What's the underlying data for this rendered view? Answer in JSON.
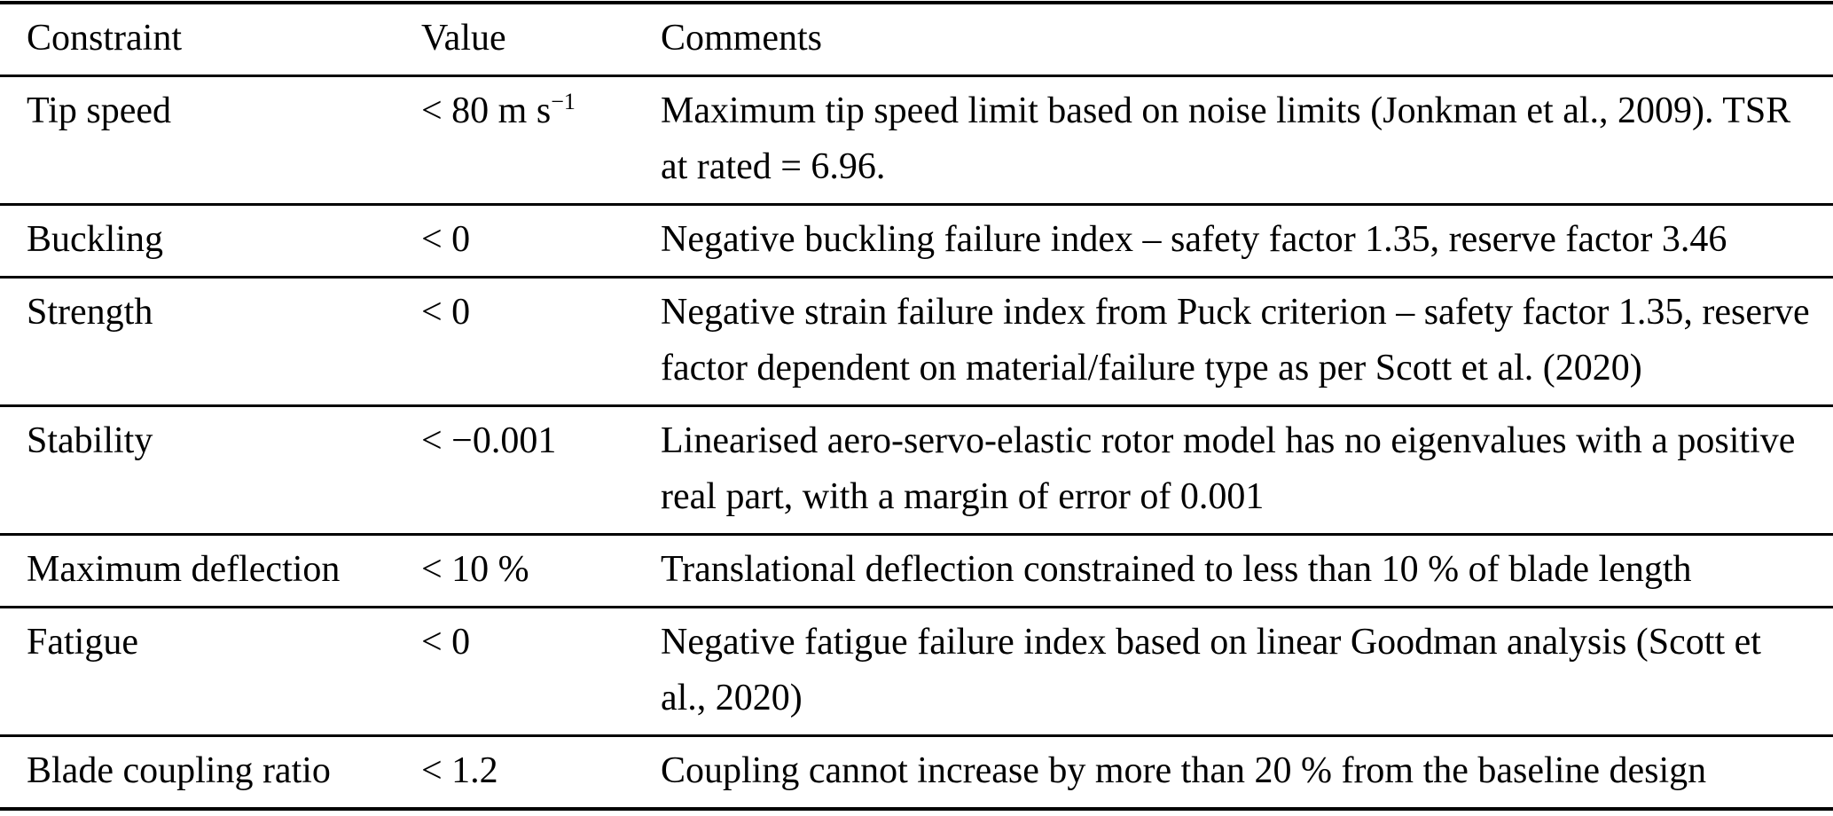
{
  "colors": {
    "background": "#ffffff",
    "text": "#000000",
    "rule": "#000000"
  },
  "table": {
    "columns": [
      "Constraint",
      "Value",
      "Comments"
    ],
    "rows": [
      {
        "constraint": "Tip speed",
        "value": "< 80 m s",
        "value_sup": "−1",
        "comment": "Maximum tip speed limit based on noise limits (Jonkman et al., 2009). TSR at rated = 6.96."
      },
      {
        "constraint": "Buckling",
        "value": "< 0",
        "value_sup": "",
        "comment": "Negative buckling failure index – safety factor 1.35, reserve factor 3.46"
      },
      {
        "constraint": "Strength",
        "value": "< 0",
        "value_sup": "",
        "comment": "Negative strain failure index from Puck criterion – safety factor 1.35, reserve factor dependent on material/failure type as per Scott et al. (2020)"
      },
      {
        "constraint": "Stability",
        "value": "< −0.001",
        "value_sup": "",
        "comment": "Linearised aero-servo-elastic rotor model has no eigenvalues with a positive real part, with a margin of error of 0.001"
      },
      {
        "constraint": "Maximum deflection",
        "value": "< 10 %",
        "value_sup": "",
        "comment": "Translational deflection constrained to less than 10 % of blade length"
      },
      {
        "constraint": "Fatigue",
        "value": "< 0",
        "value_sup": "",
        "comment": "Negative fatigue failure index based on linear Goodman analysis (Scott et al., 2020)"
      },
      {
        "constraint": "Blade coupling ratio",
        "value": "< 1.2",
        "value_sup": "",
        "comment": "Coupling cannot increase by more than 20 % from the baseline design"
      }
    ]
  }
}
